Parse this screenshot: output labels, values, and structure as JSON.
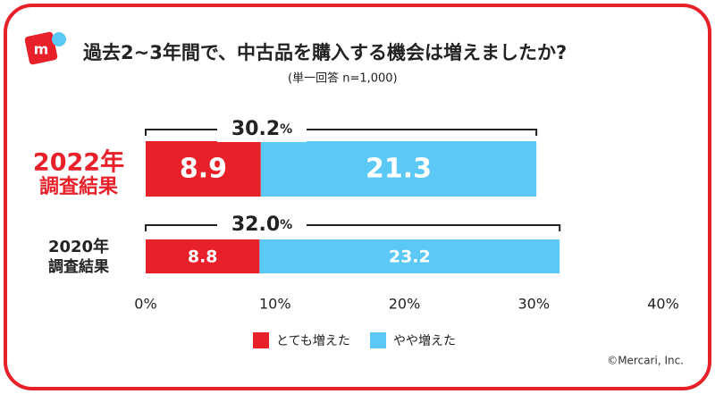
{
  "chart_data": {
    "type": "stacked-bar-horizontal",
    "title": "過去2~3年間で、中古品を購入する機会は増えましたか?",
    "subtitle": "(単一回答 n=1,000)",
    "categories": [
      [
        "2022年",
        "調査結果"
      ],
      [
        "2020年",
        "調査結果"
      ]
    ],
    "series": [
      {
        "name": "とても増えた",
        "color": "#e8202a",
        "values": [
          8.9,
          8.8
        ]
      },
      {
        "name": "やや増えた",
        "color": "#5bc8f5",
        "values": [
          21.3,
          23.2
        ]
      }
    ],
    "totals": [
      30.2,
      {
        "value": 32,
        "label": "32.0"
      }
    ],
    "total_unit": "%",
    "xlim": [
      0,
      40
    ],
    "xticks": [
      {
        "value": 0,
        "label": "0%"
      },
      {
        "value": 10,
        "label": "10%"
      },
      {
        "value": 20,
        "label": "20%"
      },
      {
        "value": 30,
        "label": "30%"
      },
      {
        "value": 40,
        "label": "40%"
      }
    ],
    "legend": "bottom",
    "credit": "©Mercari, Inc."
  }
}
